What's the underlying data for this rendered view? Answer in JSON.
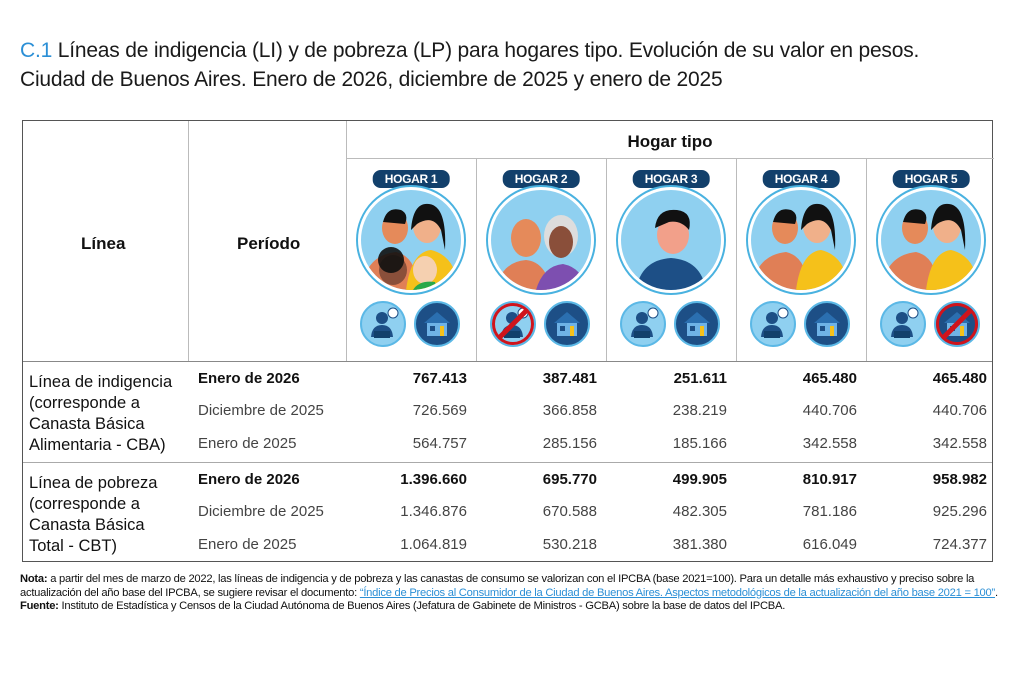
{
  "title": {
    "code": "C.1",
    "line1": "Líneas de indigencia (LI) y de pobreza (LP) para hogares tipo. Evolución de su valor en pesos.",
    "line2": "Ciudad de Buenos Aires. Enero de 2026, diciembre de 2025 y enero de 2025"
  },
  "table": {
    "col_linea": "Línea",
    "col_periodo": "Período",
    "col_group": "Hogar tipo",
    "hogares": [
      {
        "label": "HOGAR 1",
        "portrait": "family-two-adults-two-children",
        "work_excluded": false,
        "house_excluded": false
      },
      {
        "label": "HOGAR 2",
        "portrait": "elderly-couple",
        "work_excluded": true,
        "house_excluded": false
      },
      {
        "label": "HOGAR 3",
        "portrait": "single-adult",
        "work_excluded": false,
        "house_excluded": false
      },
      {
        "label": "HOGAR 4",
        "portrait": "adult-couple",
        "work_excluded": false,
        "house_excluded": false
      },
      {
        "label": "HOGAR 5",
        "portrait": "adult-couple",
        "work_excluded": false,
        "house_excluded": true
      }
    ],
    "sections": [
      {
        "label_lines": [
          "Línea de indigencia",
          "(corresponde a",
          "Canasta Básica",
          "Alimentaria - CBA)"
        ],
        "rows": [
          {
            "period": "Enero de 2026",
            "values": [
              "767.413",
              "387.481",
              "251.611",
              "465.480",
              "465.480"
            ]
          },
          {
            "period": "Diciembre de 2025",
            "values": [
              "726.569",
              "366.858",
              "238.219",
              "440.706",
              "440.706"
            ]
          },
          {
            "period": "Enero de 2025",
            "values": [
              "564.757",
              "285.156",
              "185.166",
              "342.558",
              "342.558"
            ]
          }
        ]
      },
      {
        "label_lines": [
          "Línea de pobreza",
          "(corresponde a",
          "Canasta Básica",
          "Total - CBT)"
        ],
        "rows": [
          {
            "period": "Enero de 2026",
            "values": [
              "1.396.660",
              "695.770",
              "499.905",
              "810.917",
              "958.982"
            ]
          },
          {
            "period": "Diciembre de 2025",
            "values": [
              "1.346.876",
              "670.588",
              "482.305",
              "781.186",
              "925.296"
            ]
          },
          {
            "period": "Enero de 2025",
            "values": [
              "1.064.819",
              "530.218",
              "381.380",
              "616.049",
              "724.377"
            ]
          }
        ]
      }
    ]
  },
  "notes": {
    "nota_label": "Nota:",
    "nota_text": " a partir del mes de marzo de 2022, las líneas de indigencia y de pobreza y las canastas de consumo se valorizan con el IPCBA (base 2021=100). Para un detalle más exhaustivo y preciso sobre la actualización del año base del IPCBA, se sugiere revisar el documento: ",
    "nota_link": "“Índice de Precios al Consumidor de la Ciudad de Buenos Aires. Aspectos metodológicos de la actualización del año base 2021 = 100”",
    "nota_end": ".",
    "fuente_label": "Fuente:",
    "fuente_text": " Instituto de Estadística y Censos de la Ciudad Autónoma de Buenos Aires (Jefatura de Gabinete de Ministros - GCBA) sobre la base de datos del IPCBA."
  },
  "colors": {
    "accent": "#2b8fd6",
    "badge": "#12406b",
    "ban": "#d0141c"
  }
}
